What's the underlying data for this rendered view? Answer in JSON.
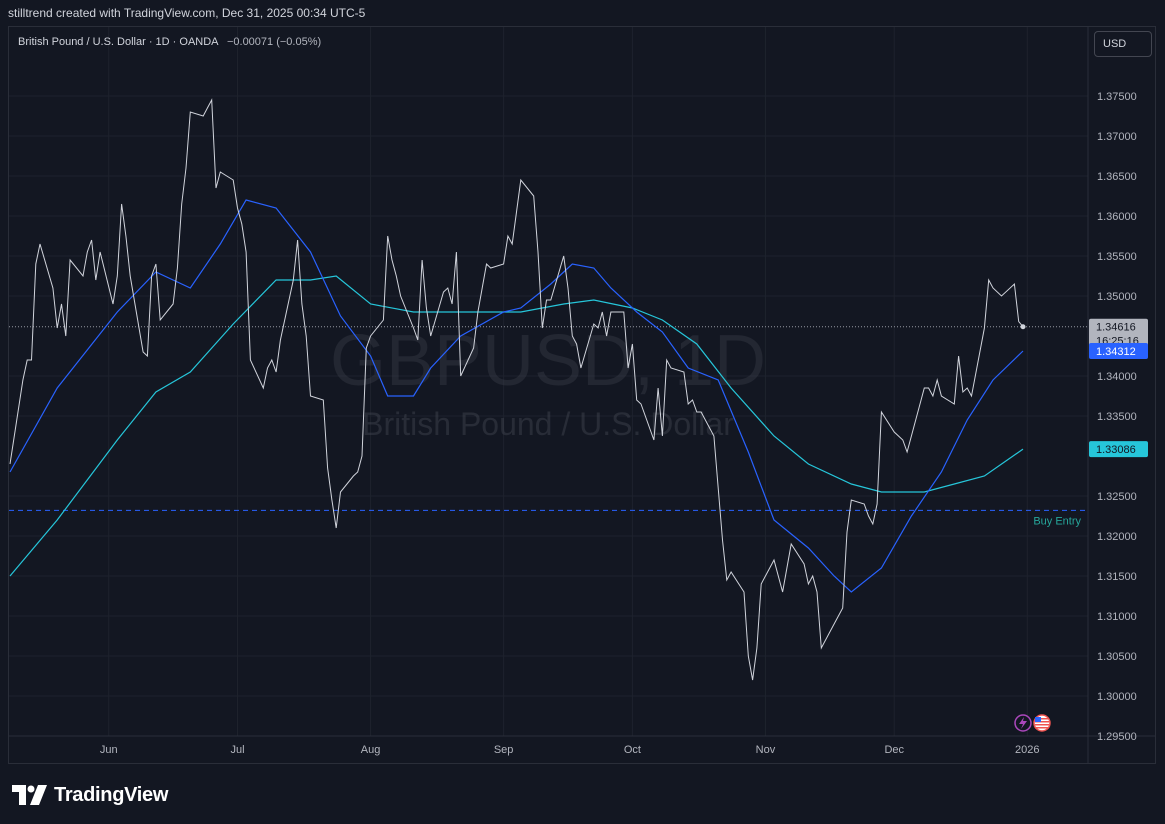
{
  "header": {
    "credit": "stilltrend created with TradingView.com, Dec 31, 2025 00:34 UTC-5"
  },
  "symbol": {
    "description": "British Pound / U.S. Dollar · 1D · OANDA",
    "change": "−0.00071 (−0.05%)",
    "watermark_main": "GBPUSD, 1D",
    "watermark_sub": "British Pound / U.S. Dollar"
  },
  "toolbar": {
    "currency": "USD"
  },
  "brand": {
    "name": "TradingView"
  },
  "colors": {
    "background": "#131722",
    "grid": "#1e222d",
    "price": "#d1d4dc",
    "ma_fast": "#2962ff",
    "ma_slow": "#26c6da",
    "buy_entry": "#2962ff",
    "last_price_tag": "#b2b5be",
    "fast_tag": "#2962ff",
    "slow_tag": "#26c6da"
  },
  "chart_data": {
    "type": "line",
    "y_ticks": [
      "1.37500",
      "1.37000",
      "1.36500",
      "1.36000",
      "1.35500",
      "1.35000",
      "1.34000",
      "1.33500",
      "1.32500",
      "1.32000",
      "1.31500",
      "1.31000",
      "1.30500",
      "1.30000",
      "1.29500"
    ],
    "x_ticks": [
      {
        "label": "Jun",
        "date": "2025-06-01"
      },
      {
        "label": "Jul",
        "date": "2025-07-01"
      },
      {
        "label": "Aug",
        "date": "2025-08-01"
      },
      {
        "label": "Sep",
        "date": "2025-09-01"
      },
      {
        "label": "Oct",
        "date": "2025-10-01"
      },
      {
        "label": "Nov",
        "date": "2025-11-01"
      },
      {
        "label": "Dec",
        "date": "2025-12-01"
      },
      {
        "label": "2026",
        "date": "2026-01-01"
      }
    ],
    "ylim": [
      1.2947,
      1.3834
    ],
    "price_series": {
      "name": "GBPUSD",
      "points": [
        [
          "2025-05-09",
          1.329
        ],
        [
          "2025-05-12",
          1.3395
        ],
        [
          "2025-05-13",
          1.342
        ],
        [
          "2025-05-14",
          1.342
        ],
        [
          "2025-05-15",
          1.354
        ],
        [
          "2025-05-16",
          1.3565
        ],
        [
          "2025-05-19",
          1.351
        ],
        [
          "2025-05-20",
          1.346
        ],
        [
          "2025-05-21",
          1.349
        ],
        [
          "2025-05-22",
          1.345
        ],
        [
          "2025-05-23",
          1.3545
        ],
        [
          "2025-05-26",
          1.3525
        ],
        [
          "2025-05-27",
          1.3555
        ],
        [
          "2025-05-28",
          1.357
        ],
        [
          "2025-05-29",
          1.352
        ],
        [
          "2025-05-30",
          1.3555
        ],
        [
          "2025-06-02",
          1.349
        ],
        [
          "2025-06-03",
          1.3525
        ],
        [
          "2025-06-04",
          1.3615
        ],
        [
          "2025-06-05",
          1.3575
        ],
        [
          "2025-06-06",
          1.3525
        ],
        [
          "2025-06-09",
          1.343
        ],
        [
          "2025-06-10",
          1.3425
        ],
        [
          "2025-06-11",
          1.3525
        ],
        [
          "2025-06-12",
          1.354
        ],
        [
          "2025-06-13",
          1.347
        ],
        [
          "2025-06-16",
          1.349
        ],
        [
          "2025-06-17",
          1.3535
        ],
        [
          "2025-06-18",
          1.3615
        ],
        [
          "2025-06-19",
          1.366
        ],
        [
          "2025-06-20",
          1.373
        ],
        [
          "2025-06-23",
          1.3725
        ],
        [
          "2025-06-24",
          1.3735
        ],
        [
          "2025-06-25",
          1.3745
        ],
        [
          "2025-06-26",
          1.3635
        ],
        [
          "2025-06-27",
          1.3655
        ],
        [
          "2025-06-30",
          1.3645
        ],
        [
          "2025-07-01",
          1.361
        ],
        [
          "2025-07-02",
          1.359
        ],
        [
          "2025-07-03",
          1.3555
        ],
        [
          "2025-07-04",
          1.342
        ],
        [
          "2025-07-07",
          1.3385
        ],
        [
          "2025-07-08",
          1.341
        ],
        [
          "2025-07-09",
          1.342
        ],
        [
          "2025-07-10",
          1.3405
        ],
        [
          "2025-07-11",
          1.3445
        ],
        [
          "2025-07-14",
          1.352
        ],
        [
          "2025-07-15",
          1.357
        ],
        [
          "2025-07-16",
          1.349
        ],
        [
          "2025-07-17",
          1.345
        ],
        [
          "2025-07-18",
          1.3375
        ],
        [
          "2025-07-21",
          1.337
        ],
        [
          "2025-07-22",
          1.3285
        ],
        [
          "2025-07-23",
          1.3245
        ],
        [
          "2025-07-24",
          1.321
        ],
        [
          "2025-07-25",
          1.3255
        ],
        [
          "2025-07-28",
          1.3275
        ],
        [
          "2025-07-29",
          1.328
        ],
        [
          "2025-07-30",
          1.33
        ],
        [
          "2025-07-31",
          1.3435
        ],
        [
          "2025-08-01",
          1.345
        ],
        [
          "2025-08-04",
          1.347
        ],
        [
          "2025-08-05",
          1.3575
        ],
        [
          "2025-08-06",
          1.3545
        ],
        [
          "2025-08-07",
          1.3525
        ],
        [
          "2025-08-08",
          1.35
        ],
        [
          "2025-08-11",
          1.346
        ],
        [
          "2025-08-12",
          1.3445
        ],
        [
          "2025-08-13",
          1.3545
        ],
        [
          "2025-08-14",
          1.3485
        ],
        [
          "2025-08-15",
          1.345
        ],
        [
          "2025-08-18",
          1.3505
        ],
        [
          "2025-08-19",
          1.351
        ],
        [
          "2025-08-20",
          1.349
        ],
        [
          "2025-08-21",
          1.3555
        ],
        [
          "2025-08-22",
          1.34
        ],
        [
          "2025-08-25",
          1.3435
        ],
        [
          "2025-08-26",
          1.348
        ],
        [
          "2025-08-27",
          1.351
        ],
        [
          "2025-08-28",
          1.354
        ],
        [
          "2025-08-29",
          1.3535
        ],
        [
          "2025-09-01",
          1.354
        ],
        [
          "2025-09-02",
          1.3575
        ],
        [
          "2025-09-03",
          1.3565
        ],
        [
          "2025-09-04",
          1.3605
        ],
        [
          "2025-09-05",
          1.3645
        ],
        [
          "2025-09-08",
          1.3625
        ],
        [
          "2025-09-09",
          1.3555
        ],
        [
          "2025-09-10",
          1.346
        ],
        [
          "2025-09-11",
          1.3495
        ],
        [
          "2025-09-12",
          1.3495
        ],
        [
          "2025-09-15",
          1.355
        ],
        [
          "2025-09-16",
          1.351
        ],
        [
          "2025-09-17",
          1.345
        ],
        [
          "2025-09-18",
          1.344
        ],
        [
          "2025-09-19",
          1.341
        ],
        [
          "2025-09-22",
          1.3465
        ],
        [
          "2025-09-23",
          1.346
        ],
        [
          "2025-09-24",
          1.348
        ],
        [
          "2025-09-25",
          1.345
        ],
        [
          "2025-09-26",
          1.348
        ],
        [
          "2025-09-29",
          1.348
        ],
        [
          "2025-09-30",
          1.341
        ],
        [
          "2025-10-01",
          1.344
        ],
        [
          "2025-10-02",
          1.337
        ],
        [
          "2025-10-03",
          1.3365
        ],
        [
          "2025-10-06",
          1.332
        ],
        [
          "2025-10-07",
          1.3385
        ],
        [
          "2025-10-08",
          1.3325
        ],
        [
          "2025-10-09",
          1.342
        ],
        [
          "2025-10-10",
          1.341
        ],
        [
          "2025-10-13",
          1.3405
        ],
        [
          "2025-10-14",
          1.3365
        ],
        [
          "2025-10-15",
          1.337
        ],
        [
          "2025-10-16",
          1.3355
        ],
        [
          "2025-10-17",
          1.3355
        ],
        [
          "2025-10-20",
          1.3325
        ],
        [
          "2025-10-21",
          1.326
        ],
        [
          "2025-10-22",
          1.3195
        ],
        [
          "2025-10-23",
          1.3145
        ],
        [
          "2025-10-24",
          1.3155
        ],
        [
          "2025-10-27",
          1.313
        ],
        [
          "2025-10-28",
          1.305
        ],
        [
          "2025-10-29",
          1.302
        ],
        [
          "2025-10-30",
          1.306
        ],
        [
          "2025-10-31",
          1.314
        ],
        [
          "2025-11-03",
          1.317
        ],
        [
          "2025-11-04",
          1.315
        ],
        [
          "2025-11-05",
          1.313
        ],
        [
          "2025-11-06",
          1.316
        ],
        [
          "2025-11-07",
          1.319
        ],
        [
          "2025-11-10",
          1.3165
        ],
        [
          "2025-11-11",
          1.314
        ],
        [
          "2025-11-12",
          1.315
        ],
        [
          "2025-11-13",
          1.313
        ],
        [
          "2025-11-14",
          1.306
        ],
        [
          "2025-11-17",
          1.309
        ],
        [
          "2025-11-18",
          1.31
        ],
        [
          "2025-11-19",
          1.311
        ],
        [
          "2025-11-20",
          1.3205
        ],
        [
          "2025-11-21",
          1.3245
        ],
        [
          "2025-11-24",
          1.324
        ],
        [
          "2025-11-25",
          1.3225
        ],
        [
          "2025-11-26",
          1.3215
        ],
        [
          "2025-11-27",
          1.324
        ],
        [
          "2025-11-28",
          1.3355
        ],
        [
          "2025-12-01",
          1.333
        ],
        [
          "2025-12-02",
          1.3325
        ],
        [
          "2025-12-03",
          1.332
        ],
        [
          "2025-12-04",
          1.3305
        ],
        [
          "2025-12-05",
          1.3325
        ],
        [
          "2025-12-08",
          1.3385
        ],
        [
          "2025-12-09",
          1.3385
        ],
        [
          "2025-12-10",
          1.3375
        ],
        [
          "2025-12-11",
          1.3395
        ],
        [
          "2025-12-12",
          1.3375
        ],
        [
          "2025-12-15",
          1.3365
        ],
        [
          "2025-12-16",
          1.3425
        ],
        [
          "2025-12-17",
          1.338
        ],
        [
          "2025-12-18",
          1.3385
        ],
        [
          "2025-12-19",
          1.3375
        ],
        [
          "2025-12-22",
          1.346
        ],
        [
          "2025-12-23",
          1.352
        ],
        [
          "2025-12-24",
          1.351
        ],
        [
          "2025-12-26",
          1.35
        ],
        [
          "2025-12-29",
          1.3515
        ],
        [
          "2025-12-30",
          1.3468
        ],
        [
          "2025-12-31",
          1.34616
        ]
      ]
    },
    "ma_fast": {
      "points": [
        [
          "2025-05-09",
          1.328
        ],
        [
          "2025-05-20",
          1.3385
        ],
        [
          "2025-06-03",
          1.348
        ],
        [
          "2025-06-12",
          1.353
        ],
        [
          "2025-06-20",
          1.351
        ],
        [
          "2025-06-27",
          1.3565
        ],
        [
          "2025-07-03",
          1.362
        ],
        [
          "2025-07-10",
          1.361
        ],
        [
          "2025-07-18",
          1.3555
        ],
        [
          "2025-07-25",
          1.3475
        ],
        [
          "2025-08-01",
          1.3425
        ],
        [
          "2025-08-05",
          1.3375
        ],
        [
          "2025-08-11",
          1.3375
        ],
        [
          "2025-08-15",
          1.341
        ],
        [
          "2025-08-22",
          1.345
        ],
        [
          "2025-09-01",
          1.348
        ],
        [
          "2025-09-05",
          1.3485
        ],
        [
          "2025-09-12",
          1.3515
        ],
        [
          "2025-09-17",
          1.354
        ],
        [
          "2025-09-22",
          1.3535
        ],
        [
          "2025-09-26",
          1.351
        ],
        [
          "2025-10-02",
          1.348
        ],
        [
          "2025-10-08",
          1.3455
        ],
        [
          "2025-10-14",
          1.341
        ],
        [
          "2025-10-21",
          1.3395
        ],
        [
          "2025-10-28",
          1.3305
        ],
        [
          "2025-11-03",
          1.322
        ],
        [
          "2025-11-11",
          1.3185
        ],
        [
          "2025-11-17",
          1.315
        ],
        [
          "2025-11-21",
          1.313
        ],
        [
          "2025-11-28",
          1.316
        ],
        [
          "2025-12-05",
          1.3225
        ],
        [
          "2025-12-12",
          1.328
        ],
        [
          "2025-12-18",
          1.3345
        ],
        [
          "2025-12-24",
          1.3395
        ],
        [
          "2025-12-31",
          1.34312
        ]
      ]
    },
    "ma_slow": {
      "points": [
        [
          "2025-05-09",
          1.315
        ],
        [
          "2025-05-20",
          1.322
        ],
        [
          "2025-06-03",
          1.332
        ],
        [
          "2025-06-12",
          1.338
        ],
        [
          "2025-06-20",
          1.3405
        ],
        [
          "2025-06-30",
          1.3465
        ],
        [
          "2025-07-10",
          1.352
        ],
        [
          "2025-07-18",
          1.352
        ],
        [
          "2025-07-24",
          1.3525
        ],
        [
          "2025-08-01",
          1.349
        ],
        [
          "2025-08-11",
          1.348
        ],
        [
          "2025-08-25",
          1.348
        ],
        [
          "2025-09-05",
          1.348
        ],
        [
          "2025-09-15",
          1.349
        ],
        [
          "2025-09-22",
          1.3495
        ],
        [
          "2025-10-01",
          1.3485
        ],
        [
          "2025-10-08",
          1.347
        ],
        [
          "2025-10-16",
          1.344
        ],
        [
          "2025-10-24",
          1.3385
        ],
        [
          "2025-11-03",
          1.3325
        ],
        [
          "2025-11-11",
          1.329
        ],
        [
          "2025-11-21",
          1.3265
        ],
        [
          "2025-11-28",
          1.3255
        ],
        [
          "2025-12-08",
          1.3255
        ],
        [
          "2025-12-15",
          1.3265
        ],
        [
          "2025-12-22",
          1.3275
        ],
        [
          "2025-12-31",
          1.33086
        ]
      ]
    },
    "horizontal_line": {
      "label": "Buy Entry",
      "value": 1.3232
    },
    "last_price": {
      "value": "1.34616",
      "countdown": "16:25:16"
    },
    "ma_fast_value": "1.34312",
    "ma_slow_value": "1.33086"
  }
}
